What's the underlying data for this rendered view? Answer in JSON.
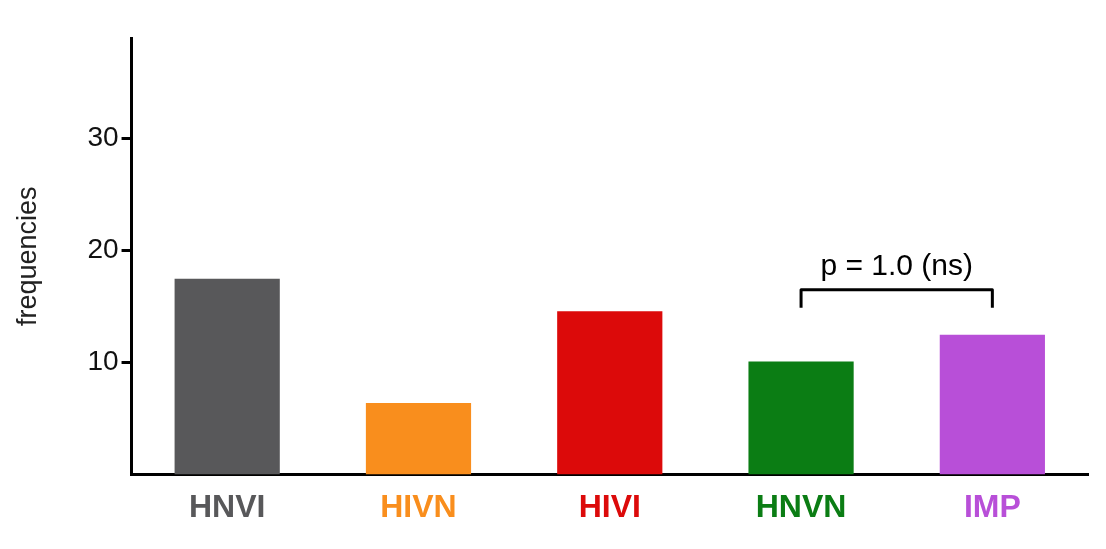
{
  "chart_data": {
    "type": "bar",
    "ylabel": "frequencies",
    "categories": [
      "HNVI",
      "HIVN",
      "HIVI",
      "HNVN",
      "IMP"
    ],
    "values": [
      17.5,
      6.4,
      14.6,
      10.1,
      12.5
    ],
    "colors": [
      "#58585a",
      "#f98e1d",
      "#dc0a0a",
      "#0b7d14",
      "#b84fd8"
    ],
    "ylim": [
      0,
      39
    ],
    "yticks": [
      10,
      20,
      30
    ],
    "grid": false,
    "legend": false,
    "annotations": [
      "p = 1.0 (ns)"
    ]
  }
}
